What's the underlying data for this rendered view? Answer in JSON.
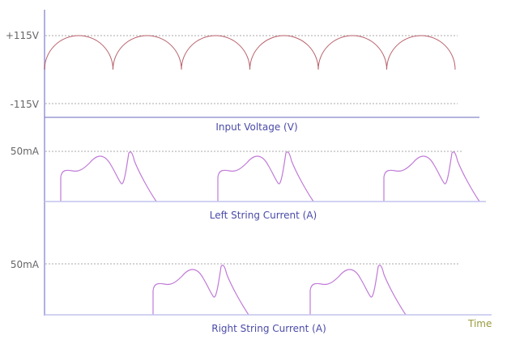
{
  "chart_data": {
    "type": "line",
    "xlabel": "Time",
    "panels": [
      {
        "title": "Input Voltage (V)",
        "ticks": [
          "+115V",
          "-115V"
        ],
        "amplitude": 115,
        "cycles": 3,
        "color": "#b8606a"
      },
      {
        "title": "Left String Current (A)",
        "ticks": [
          "50mA"
        ],
        "peak": 50,
        "pulses": 3,
        "color": "#c07ad8"
      },
      {
        "title": "Right String Current (A)",
        "ticks": [
          "50mA"
        ],
        "peak": 50,
        "pulses": 2,
        "color": "#c07ad8"
      }
    ],
    "axis_color": "#b0b0e0",
    "grid": "dashed reference lines at tick levels"
  }
}
